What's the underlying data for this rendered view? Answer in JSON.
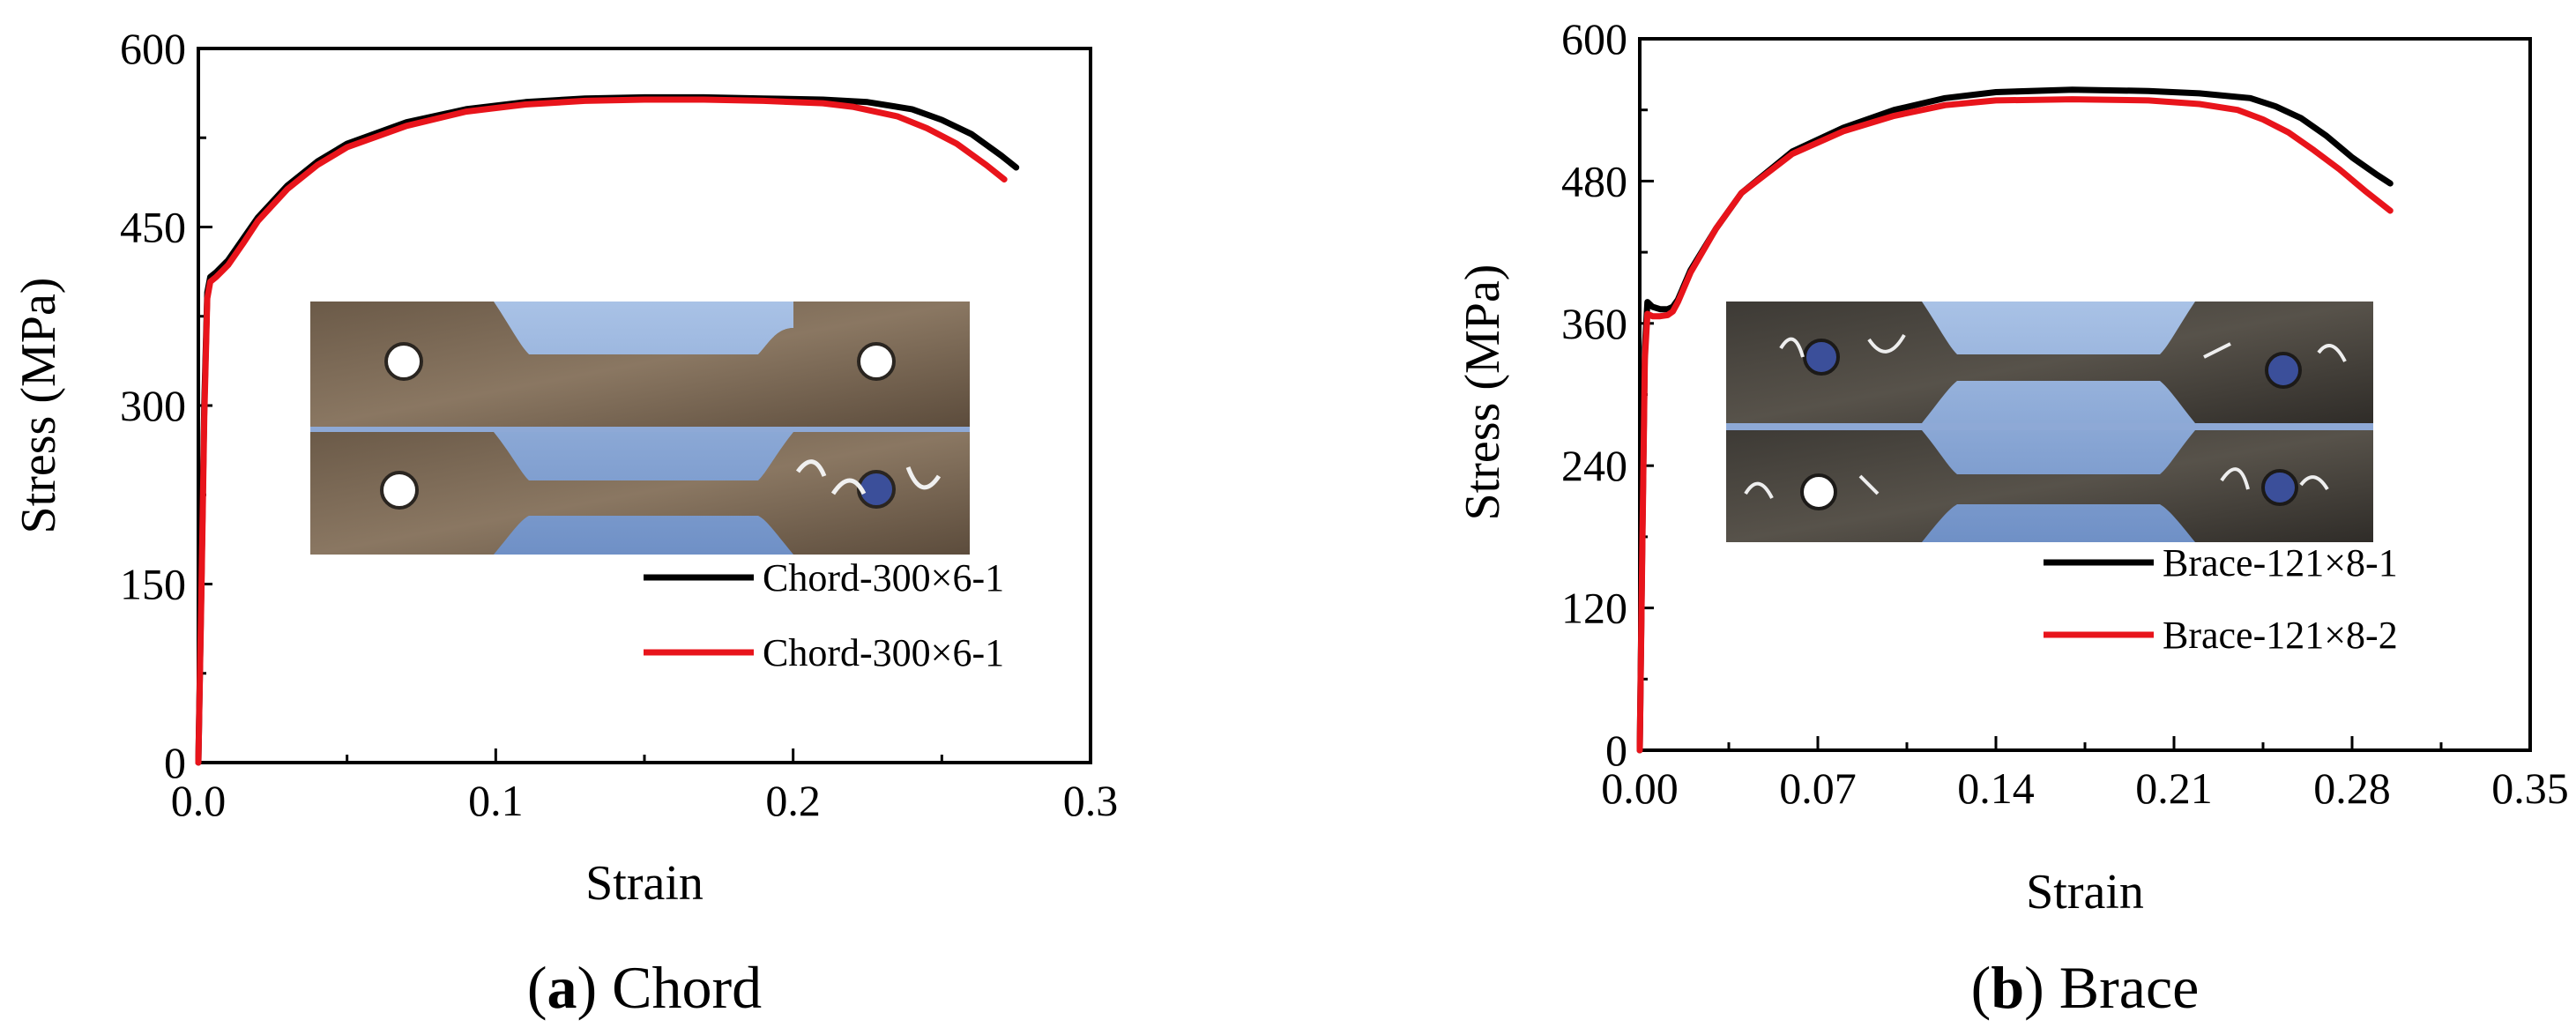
{
  "chart_data": [
    {
      "type": "line",
      "panel_label": "a",
      "caption": "Chord",
      "xlabel": "Strain",
      "ylabel": "Stress (MPa)",
      "xlim": [
        0.0,
        0.3
      ],
      "ylim": [
        0,
        600
      ],
      "xticks": [
        "0.0",
        "0.1",
        "0.2",
        "0.3"
      ],
      "yticks": [
        "0",
        "150",
        "300",
        "450",
        "600"
      ],
      "legend_position": "lower-right",
      "inset": "photograph of two chord tensile coupons",
      "series": [
        {
          "name": "Chord-300×6-1",
          "color": "#000000",
          "x": [
            0,
            0.001,
            0.002,
            0.003,
            0.004,
            0.006,
            0.01,
            0.015,
            0.02,
            0.03,
            0.04,
            0.05,
            0.07,
            0.09,
            0.11,
            0.13,
            0.15,
            0.17,
            0.19,
            0.21,
            0.225,
            0.24,
            0.25,
            0.26,
            0.27,
            0.275
          ],
          "y": [
            0,
            150,
            300,
            395,
            408,
            412,
            422,
            440,
            458,
            485,
            505,
            520,
            538,
            549,
            555,
            558,
            559,
            559,
            558,
            557,
            555,
            549,
            540,
            528,
            510,
            500
          ]
        },
        {
          "name": "Chord-300×6-1",
          "color": "#e8141b",
          "x": [
            0,
            0.001,
            0.002,
            0.003,
            0.004,
            0.006,
            0.01,
            0.015,
            0.02,
            0.03,
            0.04,
            0.05,
            0.07,
            0.09,
            0.11,
            0.13,
            0.15,
            0.17,
            0.19,
            0.21,
            0.22,
            0.235,
            0.245,
            0.255,
            0.265,
            0.271
          ],
          "y": [
            0,
            140,
            290,
            390,
            404,
            408,
            418,
            436,
            455,
            482,
            502,
            517,
            535,
            547,
            553,
            556,
            557,
            557,
            556,
            554,
            551,
            543,
            533,
            520,
            502,
            490
          ]
        }
      ]
    },
    {
      "type": "line",
      "panel_label": "b",
      "caption": "Brace",
      "xlabel": "Strain",
      "ylabel": "Stress (MPa)",
      "xlim": [
        0.0,
        0.35
      ],
      "ylim": [
        0,
        600
      ],
      "xticks": [
        "0.00",
        "0.07",
        "0.14",
        "0.21",
        "0.28",
        "0.35"
      ],
      "yticks": [
        "0",
        "120",
        "240",
        "360",
        "480",
        "600"
      ],
      "legend_position": "lower-right",
      "inset": "photograph of two brace tensile coupons",
      "series": [
        {
          "name": "Brace-121×8-1",
          "color": "#000000",
          "x": [
            0,
            0.001,
            0.002,
            0.003,
            0.005,
            0.008,
            0.011,
            0.013,
            0.015,
            0.02,
            0.03,
            0.04,
            0.06,
            0.08,
            0.1,
            0.12,
            0.14,
            0.17,
            0.2,
            0.22,
            0.24,
            0.25,
            0.26,
            0.27,
            0.28,
            0.29,
            0.295
          ],
          "y": [
            0,
            180,
            340,
            378,
            374,
            372,
            372,
            374,
            380,
            405,
            440,
            470,
            505,
            525,
            540,
            550,
            555,
            557,
            556,
            554,
            550,
            543,
            533,
            518,
            500,
            485,
            478
          ]
        },
        {
          "name": "Brace-121×8-2",
          "color": "#e8141b",
          "x": [
            0,
            0.001,
            0.002,
            0.003,
            0.005,
            0.008,
            0.011,
            0.013,
            0.015,
            0.02,
            0.03,
            0.04,
            0.06,
            0.08,
            0.1,
            0.12,
            0.14,
            0.17,
            0.2,
            0.22,
            0.235,
            0.245,
            0.255,
            0.265,
            0.275,
            0.285,
            0.295
          ],
          "y": [
            0,
            170,
            330,
            368,
            366,
            366,
            367,
            370,
            378,
            403,
            440,
            470,
            503,
            522,
            535,
            544,
            548,
            549,
            548,
            545,
            540,
            532,
            521,
            506,
            490,
            472,
            455
          ]
        }
      ]
    }
  ]
}
